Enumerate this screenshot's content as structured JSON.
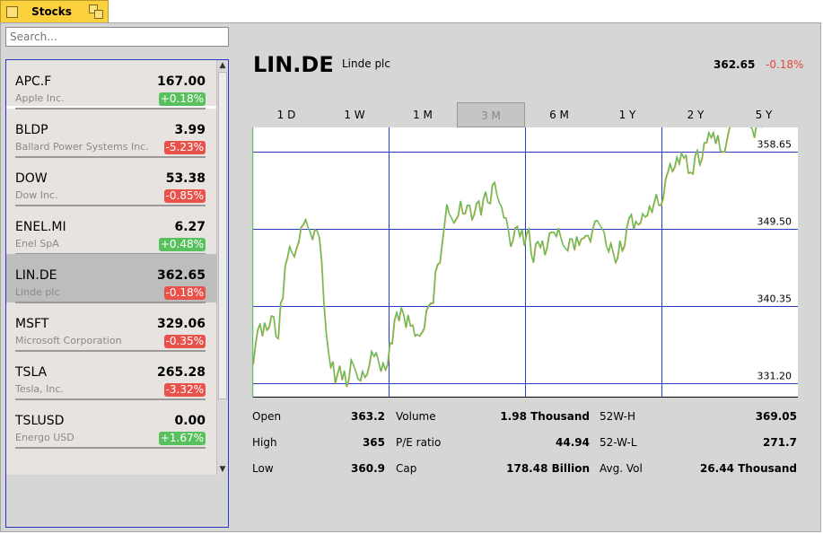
{
  "tab": {
    "title": "Stocks"
  },
  "search": {
    "placeholder": "Search..."
  },
  "stocks": [
    {
      "symbol": "APC.F",
      "name": "Apple Inc.",
      "price": "167.00",
      "change": "+0.18%",
      "dir": "up"
    },
    {
      "symbol": "BLDP",
      "name": "Ballard Power Systems Inc.",
      "price": "3.99",
      "change": "-5.23%",
      "dir": "dn"
    },
    {
      "symbol": "DOW",
      "name": "Dow Inc.",
      "price": "53.38",
      "change": "-0.85%",
      "dir": "dn"
    },
    {
      "symbol": "ENEL.MI",
      "name": "Enel SpA",
      "price": "6.27",
      "change": "+0.48%",
      "dir": "up"
    },
    {
      "symbol": "LIN.DE",
      "name": "Linde plc",
      "price": "362.65",
      "change": "-0.18%",
      "dir": "dn"
    },
    {
      "symbol": "MSFT",
      "name": "Microsoft Corporation",
      "price": "329.06",
      "change": "-0.35%",
      "dir": "dn"
    },
    {
      "symbol": "TSLA",
      "name": "Tesla, Inc.",
      "price": "265.28",
      "change": "-3.32%",
      "dir": "dn"
    },
    {
      "symbol": "TSLUSD",
      "name": "Energo USD",
      "price": "0.00",
      "change": "+1.67%",
      "dir": "up"
    }
  ],
  "selected": {
    "symbol": "LIN.DE",
    "name": "Linde plc",
    "price": "362.65",
    "change": "-0.18%"
  },
  "ranges": [
    "1 D",
    "1 W",
    "1 M",
    "3 M",
    "6 M",
    "1 Y",
    "2 Y",
    "5 Y"
  ],
  "active_range": "3 M",
  "stats": {
    "open_label": "Open",
    "open": "363.2",
    "high_label": "High",
    "high": "365",
    "low_label": "Low",
    "low": "360.9",
    "volume_label": "Volume",
    "volume": "1.98 Thousand",
    "pe_label": "P/E ratio",
    "pe": "44.94",
    "cap_label": "Cap",
    "cap": "178.48 Billion",
    "w52h_label": "52W-H",
    "w52h": "369.05",
    "w52l_label": "52-W-L",
    "w52l": "271.7",
    "avgvol_label": "Avg. Vol",
    "avgvol": "26.44 Thousand"
  },
  "colors": {
    "up": "#58c15d",
    "down": "#e8524a",
    "line_green": "#5dc05d",
    "line_orange": "#e8a040",
    "grid": "#2a3ac0",
    "selected_row": "#bdbdbd"
  },
  "chart_data": {
    "type": "line",
    "ylim": [
      329.5,
      361.5
    ],
    "y_ticks": [
      "358.65",
      "349.50",
      "340.35",
      "331.20"
    ],
    "y_tick_values": [
      358.65,
      349.5,
      340.35,
      331.2
    ],
    "series": [
      {
        "values": [
          333.5,
          335.8,
          337.6,
          338.2,
          336.8,
          338.4,
          337.5,
          337.9,
          339.2,
          339.1,
          336.7,
          336.5,
          340.7,
          341.3,
          345.1,
          346.1,
          347.4,
          346.7,
          346.2,
          347.2,
          348.0,
          349.7,
          350.0,
          350.6,
          349.7,
          349.1,
          348.2,
          349.4,
          349.3,
          348.5,
          345.8,
          340.7,
          337.3,
          334.9,
          333.1,
          333.8,
          331.2,
          332.3,
          333.3,
          331.6,
          332.7,
          330.8,
          331.7,
          334.0,
          333.4,
          332.6,
          331.7,
          331.5,
          332.6,
          331.9,
          332.3,
          333.4,
          335.0,
          334.4,
          334.8,
          333.8,
          332.6,
          333.6,
          332.8,
          333.4,
          336.0,
          335.9,
          338.7,
          339.6,
          338.6,
          340.2,
          339.4,
          337.8,
          339.3,
          338.0,
          338.1,
          336.8,
          337.0,
          336.8,
          337.2,
          337.7,
          339.8,
          340.4,
          340.7,
          340.7,
          344.4,
          345.3,
          345.5,
          348.0,
          350.1,
          352.4,
          351.3,
          350.8,
          350.2,
          350.6,
          351.1,
          352.8,
          351.3,
          351.3,
          352.3,
          352.3,
          350.6,
          351.2,
          352.5,
          352.8,
          351.1,
          353.0,
          353.9,
          352.6,
          352.5,
          354.7,
          355.0,
          353.5,
          352.6,
          352.1,
          350.8,
          350.8,
          349.3,
          347.4,
          348.1,
          349.6,
          349.8,
          348.6,
          349.4,
          347.5,
          348.9,
          349.5,
          346.5,
          345.5,
          347.7,
          348.0,
          347.3,
          348.1,
          346.4,
          347.3,
          349.0,
          349.1,
          349.1,
          348.6,
          349.6,
          348.5,
          347.6,
          347.2,
          346.9,
          348.3,
          348.3,
          347.0,
          348.6,
          347.6,
          348.3,
          348.4,
          348.7,
          348.7,
          348.0,
          349.4,
          350.4,
          350.5,
          350.0,
          349.6,
          349.1,
          347.5,
          346.8,
          347.8,
          346.7,
          345.5,
          346.1,
          348.1,
          346.9,
          347.5,
          349.7,
          350.8,
          351.2,
          349.5,
          350.4,
          350.0,
          350.2,
          351.3,
          350.9,
          351.1,
          352.2,
          351.5,
          352.6,
          353.6,
          352.3,
          352.3,
          353.2,
          355.4,
          356.2,
          357.2,
          356.3,
          356.8,
          358.0,
          357.2,
          358.5,
          357.9,
          358.2,
          356.1,
          356.2,
          356.0,
          358.2,
          358.8,
          357.1,
          357.8,
          359.7,
          359.7,
          360.9,
          360.3,
          360.9,
          359.6,
          360.6,
          358.8,
          358.6,
          358.7,
          360.1,
          361.4,
          362.1,
          362.5,
          362.7,
          363.0,
          364.1,
          365.0,
          364.0,
          362.5,
          361.6,
          361.4,
          360.3,
          362.1,
          362.6,
          361.5
        ]
      }
    ]
  }
}
